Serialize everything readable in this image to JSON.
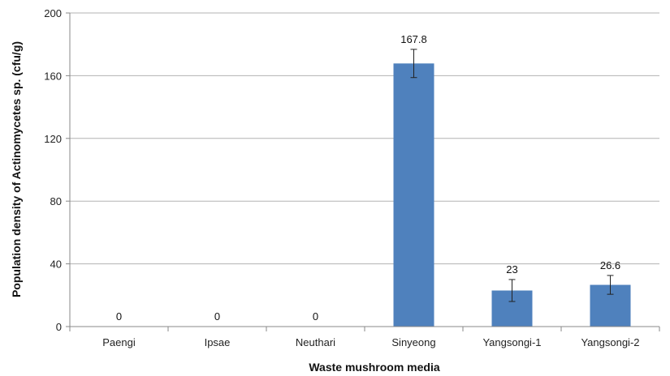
{
  "chart_data": {
    "type": "bar",
    "xlabel": "Waste mushroom media",
    "ylabel": "Population density of Actinomycetes sp. (cfu/g)",
    "categories": [
      "Paengi",
      "Ipsae",
      "Neuthari",
      "Sinyeong",
      "Yangsongi-1",
      "Yangsongi-2"
    ],
    "values": [
      0,
      0,
      0,
      167.8,
      23,
      26.6
    ],
    "data_labels": [
      "0",
      "0",
      "0",
      "167.8",
      "23",
      "26.6"
    ],
    "error": [
      0,
      0,
      0,
      9,
      7,
      6
    ],
    "ylim": [
      0,
      200
    ],
    "yticks": [
      "0",
      "40",
      "80",
      "120",
      "160",
      "200"
    ],
    "grid": true,
    "bar_color": "#4f81bd",
    "grid_color": "#b3b3b3"
  }
}
